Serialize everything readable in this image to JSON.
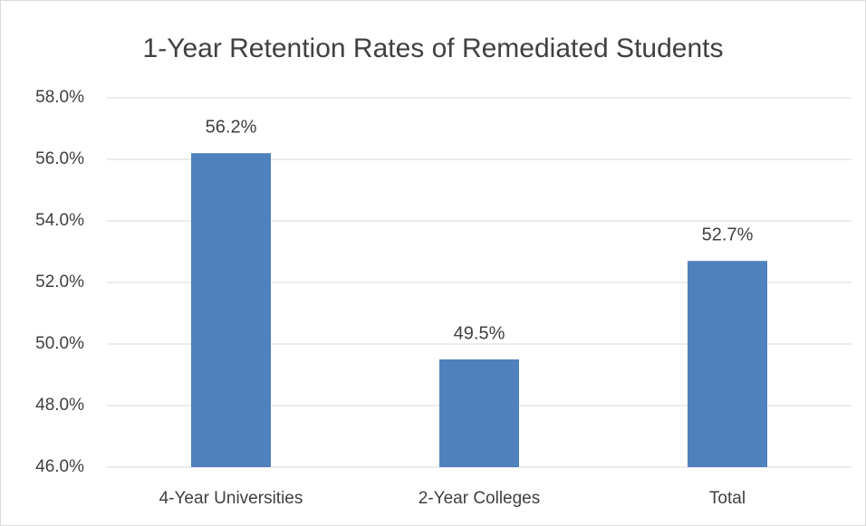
{
  "chart_data": {
    "type": "bar",
    "title": "1-Year Retention Rates of Remediated Students",
    "categories": [
      "4-Year Universities",
      "2-Year Colleges",
      "Total"
    ],
    "values": [
      56.2,
      49.5,
      52.7
    ],
    "value_labels": [
      "56.2%",
      "49.5%",
      "52.7%"
    ],
    "color": "#4f81bd",
    "ylim": [
      46,
      58
    ],
    "yticks": [
      {
        "value": 46,
        "label": "46.0%"
      },
      {
        "value": 48,
        "label": "48.0%"
      },
      {
        "value": 50,
        "label": "50.0%"
      },
      {
        "value": 52,
        "label": "52.0%"
      },
      {
        "value": 54,
        "label": "54.0%"
      },
      {
        "value": 56,
        "label": "56.0%"
      },
      {
        "value": 58,
        "label": "58.0%"
      }
    ],
    "grid": true
  }
}
